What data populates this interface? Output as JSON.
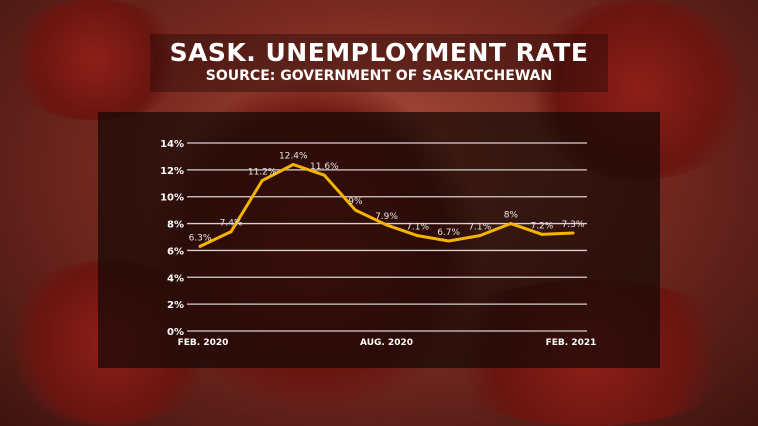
{
  "header": {
    "title": "SASK. UNEMPLOYMENT RATE",
    "subtitle": "SOURCE: GOVERNMENT OF SASKATCHEWAN"
  },
  "chart_data": {
    "type": "line",
    "title": "SASK. UNEMPLOYMENT RATE",
    "subtitle": "SOURCE: GOVERNMENT OF SASKATCHEWAN",
    "x_tick_labels": [
      "FEB. 2020",
      "AUG. 2020",
      "FEB. 2021"
    ],
    "y_ticks": [
      0,
      2,
      4,
      6,
      8,
      10,
      12,
      14
    ],
    "y_tick_labels": [
      "0%",
      "2%",
      "4%",
      "6%",
      "8%",
      "10%",
      "12%",
      "14%"
    ],
    "ylim": [
      0,
      14
    ],
    "grid": true,
    "line_color": "#f5b400",
    "values": [
      6.3,
      7.4,
      11.2,
      12.4,
      11.6,
      9,
      7.9,
      7.1,
      6.7,
      7.1,
      8,
      7.2,
      7.3
    ],
    "data_labels": [
      "6.3%",
      "7.4%",
      "11.2%",
      "12.4%",
      "11.6%",
      "9%",
      "7.9%",
      "7.1%",
      "6.7%",
      "7.1%",
      "8%",
      "7.2%",
      "7.3%"
    ]
  }
}
